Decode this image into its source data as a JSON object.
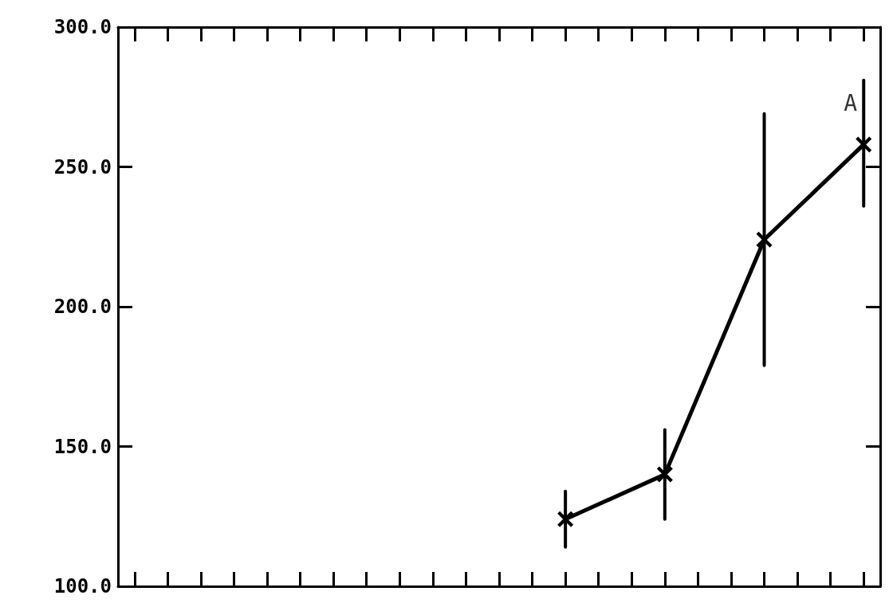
{
  "chart_data": {
    "type": "line",
    "categories": [
      null,
      null,
      null,
      null,
      null,
      null,
      null,
      null,
      null,
      null,
      null,
      null,
      null,
      null,
      null,
      null,
      null,
      null,
      null,
      null,
      null,
      null,
      null
    ],
    "values": [
      null,
      null,
      null,
      null,
      null,
      null,
      null,
      null,
      null,
      null,
      null,
      null,
      null,
      124,
      null,
      null,
      140,
      null,
      null,
      224,
      null,
      null,
      258
    ],
    "errors": [
      null,
      null,
      null,
      null,
      null,
      null,
      null,
      null,
      null,
      null,
      null,
      null,
      null,
      10,
      null,
      null,
      16,
      null,
      null,
      45,
      null,
      null,
      [
        236,
        281
      ]
    ],
    "color": "#000000",
    "marker": "cross",
    "line_style": "solid",
    "ylim": [
      100,
      300
    ],
    "yticks": [
      {
        "value": 100,
        "label": "100.0"
      },
      {
        "value": 150,
        "label": "150.0"
      },
      {
        "value": 200,
        "label": "200.0"
      },
      {
        "value": 250,
        "label": "250.0"
      },
      {
        "value": 300,
        "label": "300.0"
      }
    ],
    "tick_labels": "y",
    "grid": false,
    "annotations": [
      "A"
    ]
  }
}
